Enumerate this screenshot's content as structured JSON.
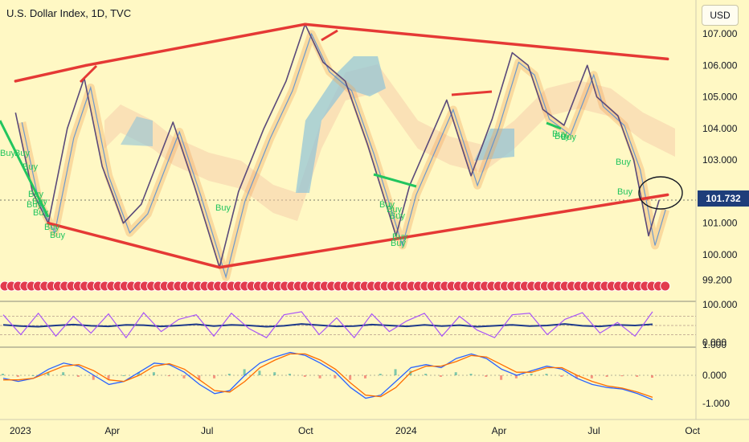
{
  "header": {
    "title": "U.S. Dollar Index, 1D, TVC",
    "currency_button": "USD",
    "last_price": "101.732"
  },
  "chart_data": [
    {
      "type": "line",
      "name": "main-price-pane",
      "y_axis_labels": [
        "107.000",
        "106.000",
        "105.000",
        "104.000",
        "103.000",
        "102.000",
        "101.000",
        "100.000",
        "99.200"
      ],
      "x_axis_labels": [
        "2023",
        "Apr",
        "Jul",
        "Oct",
        "2024",
        "Apr",
        "Jul",
        "Oct"
      ],
      "ylim": [
        99.2,
        107.2
      ],
      "price_path": [
        [
          "2023-01-02",
          104.5
        ],
        [
          "2023-01-18",
          102.0
        ],
        [
          "2023-02-02",
          101.0
        ],
        [
          "2023-02-20",
          104.0
        ],
        [
          "2023-03-08",
          105.6
        ],
        [
          "2023-03-25",
          102.8
        ],
        [
          "2023-04-14",
          101.0
        ],
        [
          "2023-05-01",
          101.6
        ],
        [
          "2023-05-31",
          104.2
        ],
        [
          "2023-06-20",
          102.2
        ],
        [
          "2023-07-14",
          99.6
        ],
        [
          "2023-08-01",
          102.0
        ],
        [
          "2023-08-25",
          104.0
        ],
        [
          "2023-09-15",
          105.5
        ],
        [
          "2023-10-03",
          107.3
        ],
        [
          "2023-10-20",
          106.1
        ],
        [
          "2023-11-10",
          105.5
        ],
        [
          "2023-12-01",
          103.5
        ],
        [
          "2023-12-28",
          100.6
        ],
        [
          "2024-01-10",
          102.2
        ],
        [
          "2024-02-14",
          104.9
        ],
        [
          "2024-03-08",
          102.5
        ],
        [
          "2024-03-28",
          104.3
        ],
        [
          "2024-04-16",
          106.4
        ],
        [
          "2024-05-01",
          106.0
        ],
        [
          "2024-05-15",
          104.6
        ],
        [
          "2024-06-04",
          104.1
        ],
        [
          "2024-06-26",
          106.0
        ],
        [
          "2024-07-05",
          105.0
        ],
        [
          "2024-07-25",
          104.4
        ],
        [
          "2024-08-09",
          103.0
        ],
        [
          "2024-08-23",
          100.6
        ],
        [
          "2024-09-02",
          101.732
        ]
      ],
      "trendlines": [
        {
          "from": [
            "2023-01-02",
            105.5
          ],
          "to": [
            "2023-03-10",
            106.0
          ]
        },
        {
          "from": [
            "2023-03-10",
            106.0
          ],
          "to": [
            "2023-10-03",
            107.3
          ]
        },
        {
          "from": [
            "2023-10-03",
            107.3
          ],
          "to": [
            "2024-09-10",
            106.2
          ]
        },
        {
          "from": [
            "2023-02-02",
            101.0
          ],
          "to": [
            "2023-07-14",
            99.6
          ]
        },
        {
          "from": [
            "2023-07-14",
            99.6
          ],
          "to": [
            "2024-09-10",
            101.9
          ]
        }
      ],
      "buy_signals": [
        "Buy",
        "Buy",
        "Buy",
        "Buy",
        "Buy",
        "Buy",
        "Buy",
        "Buy",
        "Buy",
        "Buy",
        "Buy",
        "Buy",
        "Buy",
        "Buy",
        "Buy",
        "Buy",
        "Buy",
        "Buy",
        "Buy",
        "Buy"
      ],
      "colors": {
        "trendline": "#e53935",
        "buy": "#22c55e",
        "ichimoku": "#2c7fc6",
        "last_price": "#1e3d7a"
      }
    },
    {
      "type": "line",
      "name": "stochastic-rsi",
      "y_axis_labels": [
        "100.000",
        "0.000"
      ],
      "series": [
        {
          "color": "#1e3a8a",
          "values": [
            52,
            48,
            46,
            50,
            53,
            49,
            47,
            52,
            51,
            47,
            50,
            54,
            48,
            52,
            50,
            46,
            49,
            55,
            51,
            47,
            48,
            53,
            50,
            47,
            52,
            48,
            51,
            46,
            49,
            52,
            48,
            50,
            55,
            49,
            47,
            52,
            50,
            54
          ]
        },
        {
          "color": "#a855f7",
          "values": [
            85,
            20,
            90,
            15,
            80,
            25,
            88,
            10,
            92,
            30,
            70,
            85,
            15,
            90,
            40,
            10,
            85,
            95,
            20,
            75,
            10,
            88,
            30,
            65,
            90,
            15,
            80,
            35,
            10,
            85,
            90,
            20,
            70,
            92,
            25,
            60,
            15,
            95
          ]
        }
      ],
      "ylim": [
        0,
        100
      ]
    },
    {
      "type": "line",
      "name": "macd",
      "y_axis_labels": [
        "1.000",
        "0.000",
        "-1.000"
      ],
      "series": [
        {
          "color": "#2962ff",
          "values": [
            -0.1,
            -0.2,
            -0.1,
            0.2,
            0.4,
            0.3,
            0.0,
            -0.3,
            -0.2,
            0.1,
            0.4,
            0.35,
            0.1,
            -0.3,
            -0.6,
            -0.5,
            0.0,
            0.4,
            0.6,
            0.75,
            0.65,
            0.4,
            0.1,
            -0.4,
            -0.75,
            -0.65,
            -0.2,
            0.25,
            0.35,
            0.25,
            0.55,
            0.7,
            0.55,
            0.2,
            0.0,
            0.15,
            0.3,
            0.2,
            -0.1,
            -0.3,
            -0.4,
            -0.45,
            -0.6,
            -0.8
          ]
        },
        {
          "color": "#ff6d00",
          "values": [
            -0.15,
            -0.15,
            -0.1,
            0.1,
            0.3,
            0.35,
            0.15,
            -0.15,
            -0.2,
            0.0,
            0.3,
            0.38,
            0.2,
            -0.15,
            -0.5,
            -0.55,
            -0.2,
            0.25,
            0.5,
            0.7,
            0.7,
            0.5,
            0.2,
            -0.25,
            -0.65,
            -0.7,
            -0.4,
            0.1,
            0.3,
            0.3,
            0.45,
            0.65,
            0.6,
            0.35,
            0.1,
            0.1,
            0.25,
            0.25,
            0.0,
            -0.2,
            -0.35,
            -0.42,
            -0.55,
            -0.72
          ]
        }
      ],
      "ylim": [
        -1.2,
        1.0
      ]
    }
  ]
}
